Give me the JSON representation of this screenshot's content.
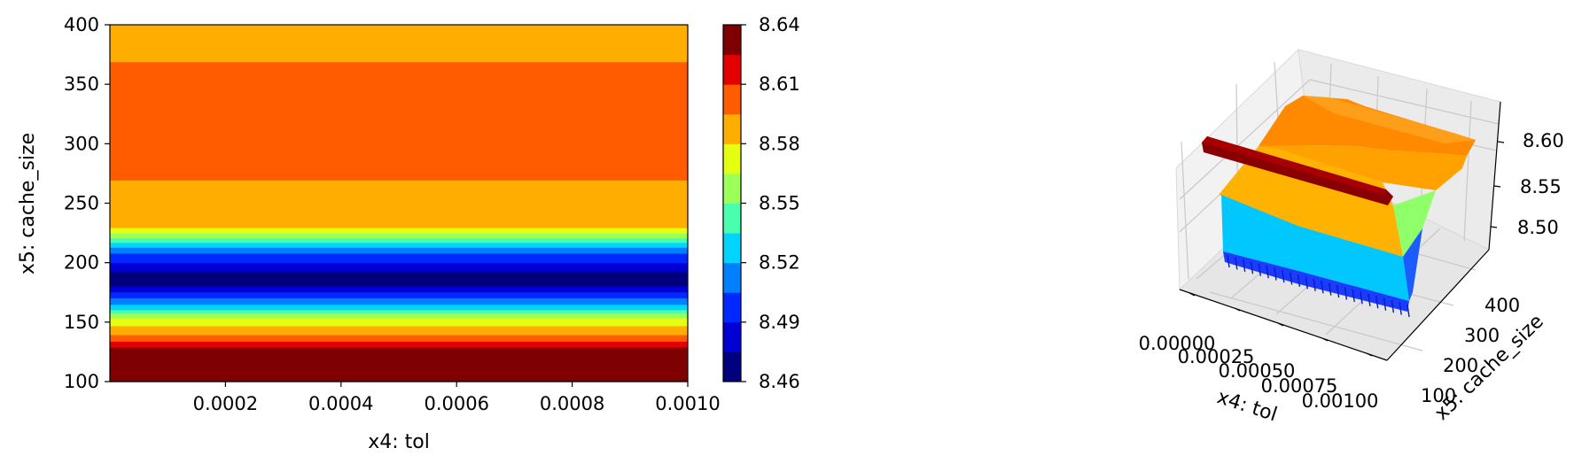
{
  "chart_data": [
    {
      "type": "heatmap",
      "title": "",
      "xlabel": "x4: tol",
      "ylabel": "x5: cache_size",
      "xlim": [
        0.0,
        0.001
      ],
      "ylim": [
        100,
        400
      ],
      "x_ticks": [
        "0.0002",
        "0.0004",
        "0.0006",
        "0.0008",
        "0.0010"
      ],
      "x_tick_values": [
        0.0002,
        0.0004,
        0.0006,
        0.0008,
        0.001
      ],
      "y_ticks": [
        "100",
        "150",
        "200",
        "250",
        "300",
        "350",
        "400"
      ],
      "y_tick_values": [
        100,
        150,
        200,
        250,
        300,
        350,
        400
      ],
      "profile": {
        "description_axis": "x5",
        "x5": [
          100,
          125,
          130,
          137,
          143,
          150,
          153,
          157,
          160,
          163,
          166,
          170,
          175,
          180,
          185,
          190,
          196,
          200,
          205,
          210,
          213,
          217,
          221,
          225,
          229,
          232,
          260,
          292,
          325,
          358,
          380,
          400
        ],
        "value": [
          8.64,
          8.64,
          8.62,
          8.6,
          8.585,
          8.575,
          8.565,
          8.55,
          8.535,
          8.525,
          8.515,
          8.505,
          8.49,
          8.475,
          8.465,
          8.47,
          8.48,
          8.49,
          8.5,
          8.51,
          8.52,
          8.535,
          8.55,
          8.565,
          8.578,
          8.59,
          8.593,
          8.6,
          8.605,
          8.6,
          8.59,
          8.59
        ]
      },
      "colorbar": {
        "ticks": [
          "8.46",
          "8.49",
          "8.52",
          "8.55",
          "8.58",
          "8.61",
          "8.64"
        ],
        "tick_values": [
          8.46,
          8.49,
          8.52,
          8.55,
          8.58,
          8.61,
          8.64
        ],
        "levels": [
          8.46,
          8.475,
          8.49,
          8.505,
          8.52,
          8.535,
          8.55,
          8.565,
          8.58,
          8.595,
          8.61,
          8.625,
          8.64
        ],
        "colors": [
          "#00007f",
          "#0000d4",
          "#0028ff",
          "#0080ff",
          "#00d4ff",
          "#48ffad",
          "#9dff5a",
          "#e5ff12",
          "#ffae00",
          "#ff5c00",
          "#e40000",
          "#7f0000"
        ],
        "colormap": "jet"
      }
    },
    {
      "type": "surface3d",
      "xlabel": "x4: tol",
      "ylabel": "x5: cache_size",
      "x_ticks": [
        "0.00000",
        "0.00025",
        "0.00050",
        "0.00075",
        "0.00100"
      ],
      "y_ticks": [
        "100",
        "200",
        "300",
        "400"
      ],
      "z_ticks": [
        "8.50",
        "8.55",
        "8.60"
      ],
      "zlim": [
        8.46,
        8.64
      ],
      "colormap": "jet"
    }
  ]
}
